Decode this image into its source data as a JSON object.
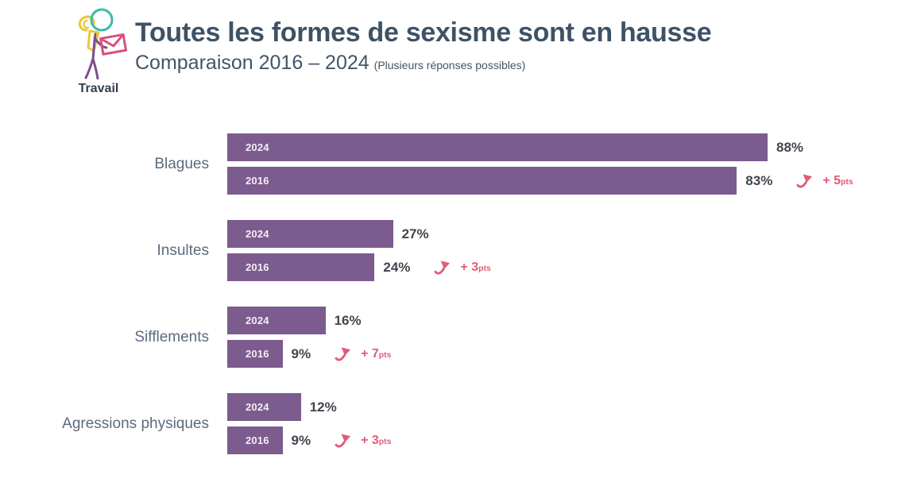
{
  "header": {
    "context_label": "Travail"
  },
  "colors": {
    "bar_purple": "#7C5B8E",
    "delta_pink": "#E05C78",
    "title_navy": "#3E5266",
    "category_blue_gray": "#5B6B7D",
    "value_dark": "#44444E"
  },
  "icons": {
    "brand": "travail-person-icon",
    "trend": "trend-up-arrow-icon"
  },
  "chart_data": {
    "type": "bar",
    "orientation": "horizontal",
    "title": "Toutes les formes de sexisme sont en hausse",
    "subtitle": "Comparaison 2016 – 2024",
    "note": "(Plusieurs réponses possibles)",
    "context_label": "Travail",
    "unit": "%",
    "xlim": [
      0,
      100
    ],
    "grid": false,
    "legend_position": "inside-bars",
    "series_labels": [
      "2024",
      "2016"
    ],
    "rows": [
      {
        "category": "Blagues",
        "values": [
          88,
          83
        ],
        "value_labels": [
          "88%",
          "83%"
        ],
        "delta": 5,
        "delta_label": "+ 5",
        "delta_unit": "pts"
      },
      {
        "category": "Insultes",
        "values": [
          27,
          24
        ],
        "value_labels": [
          "27%",
          "24%"
        ],
        "delta": 3,
        "delta_label": "+ 3",
        "delta_unit": "pts"
      },
      {
        "category": "Sifflements",
        "values": [
          16,
          9
        ],
        "value_labels": [
          "16%",
          "9%"
        ],
        "delta": 7,
        "delta_label": "+ 7",
        "delta_unit": "pts"
      },
      {
        "category": "Agressions physiques",
        "values": [
          12,
          9
        ],
        "value_labels": [
          "12%",
          "9%"
        ],
        "delta": 3,
        "delta_label": "+ 3",
        "delta_unit": "pts"
      }
    ]
  }
}
